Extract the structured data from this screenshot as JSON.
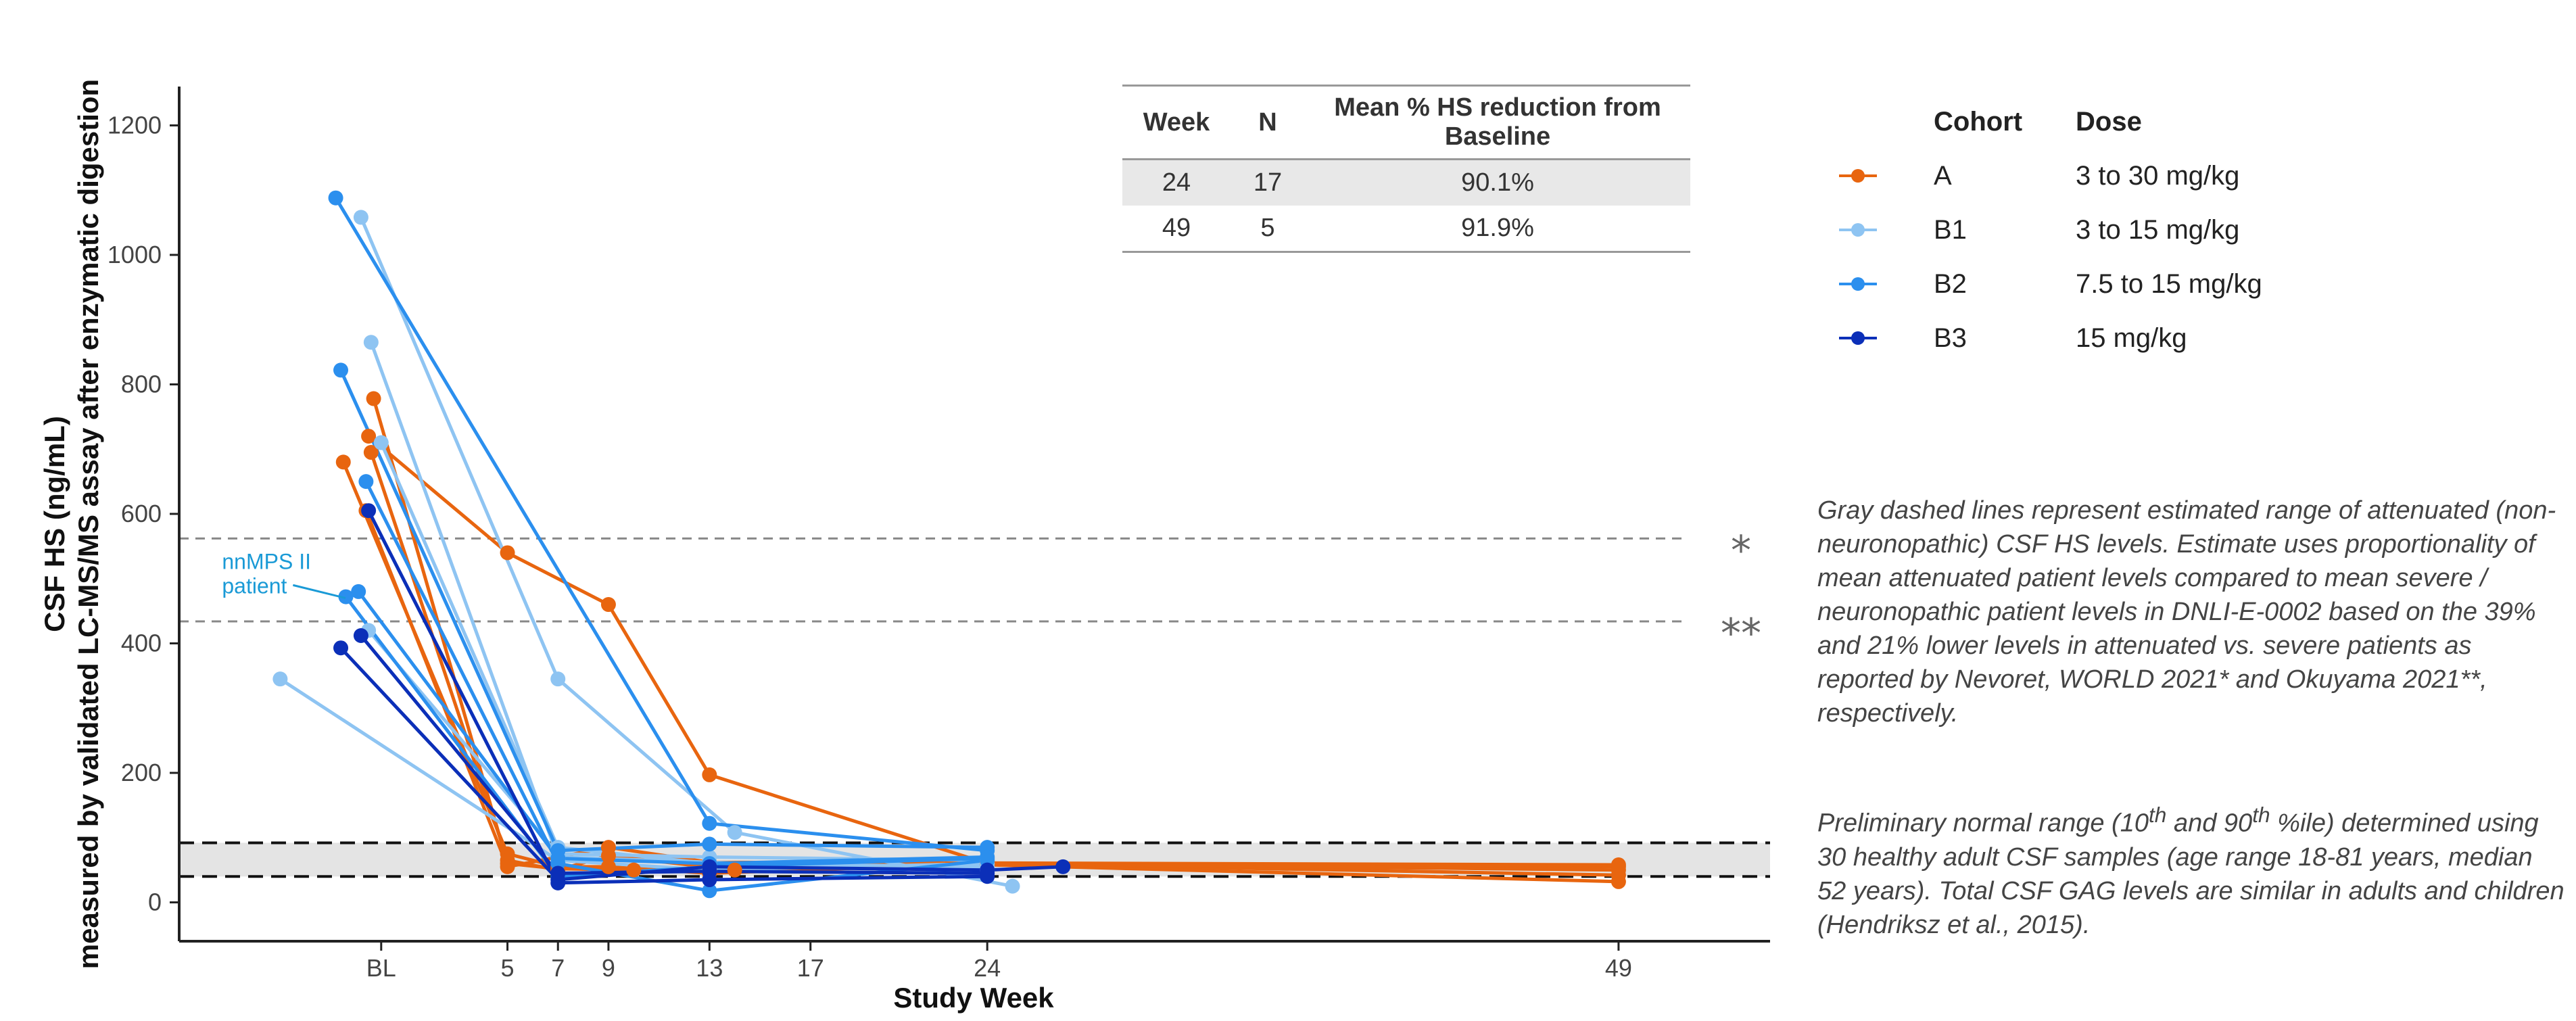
{
  "chart_data": {
    "type": "line",
    "xlabel": "Study Week",
    "ylabel_line1": "CSF HS (ng/mL)",
    "ylabel_line2": "measured by validated LC-MS/MS assay after enzymatic digestion",
    "ylim": [
      -60,
      1260
    ],
    "xlim": [
      -8,
      55
    ],
    "x_ticks": [
      {
        "value": 0,
        "label": "BL"
      },
      {
        "value": 5,
        "label": "5"
      },
      {
        "value": 7,
        "label": "7"
      },
      {
        "value": 9,
        "label": "9"
      },
      {
        "value": 13,
        "label": "13"
      },
      {
        "value": 17,
        "label": "17"
      },
      {
        "value": 24,
        "label": "24"
      },
      {
        "value": 49,
        "label": "49"
      }
    ],
    "y_ticks": [
      0,
      200,
      400,
      600,
      800,
      1000,
      1200
    ],
    "reference_lines": [
      {
        "y": 562,
        "style": "gray-dashed",
        "label": "*"
      },
      {
        "y": 434,
        "style": "gray-dashed",
        "label": "**"
      }
    ],
    "normal_range": {
      "low": 40,
      "high": 92
    },
    "annotation": {
      "text_line1": "nnMPS II",
      "text_line2": "patient",
      "x": -5.5,
      "y": 515,
      "target_x": -1.2,
      "target_y": 470
    },
    "series": [
      {
        "name": "A-1",
        "cohort": "A",
        "points": [
          [
            -1.5,
            680
          ],
          [
            5,
            75
          ],
          [
            7,
            55
          ],
          [
            9,
            55
          ],
          [
            13,
            45
          ],
          [
            24,
            60
          ],
          [
            49,
            55
          ]
        ]
      },
      {
        "name": "A-2",
        "cohort": "A",
        "points": [
          [
            -0.5,
            720
          ],
          [
            5,
            540
          ],
          [
            9,
            460
          ],
          [
            13,
            197
          ],
          [
            24,
            60
          ],
          [
            49,
            42
          ]
        ]
      },
      {
        "name": "A-3",
        "cohort": "A",
        "points": [
          [
            -0.3,
            778
          ],
          [
            5,
            60
          ],
          [
            7,
            52
          ],
          [
            10,
            50
          ],
          [
            13,
            52
          ],
          [
            24,
            58
          ],
          [
            49,
            32
          ]
        ]
      },
      {
        "name": "A-4",
        "cohort": "A",
        "points": [
          [
            -0.4,
            695
          ],
          [
            5,
            65
          ],
          [
            7,
            50
          ],
          [
            9,
            72
          ],
          [
            14,
            50
          ],
          [
            24,
            60
          ],
          [
            49,
            50
          ]
        ]
      },
      {
        "name": "A-5",
        "cohort": "A",
        "points": [
          [
            -0.6,
            605
          ],
          [
            5,
            55
          ],
          [
            9,
            85
          ],
          [
            13,
            62
          ],
          [
            49,
            58
          ]
        ]
      },
      {
        "name": "B1-1",
        "cohort": "B1",
        "points": [
          [
            -4,
            345
          ],
          [
            7,
            65
          ],
          [
            13,
            50
          ],
          [
            24,
            60
          ]
        ]
      },
      {
        "name": "B1-2",
        "cohort": "B1",
        "points": [
          [
            -0.8,
            1058
          ],
          [
            7,
            345
          ],
          [
            14,
            108
          ],
          [
            25,
            25
          ]
        ]
      },
      {
        "name": "B1-3",
        "cohort": "B1",
        "points": [
          [
            -0.4,
            865
          ],
          [
            7,
            70
          ],
          [
            13,
            62
          ],
          [
            24,
            50
          ]
        ]
      },
      {
        "name": "B1-4",
        "cohort": "B1",
        "points": [
          [
            0,
            710
          ],
          [
            7,
            85
          ],
          [
            13,
            60
          ],
          [
            24,
            55
          ]
        ]
      },
      {
        "name": "B1-5",
        "cohort": "B1",
        "points": [
          [
            -0.5,
            420
          ],
          [
            7,
            75
          ],
          [
            13,
            70
          ],
          [
            24,
            65
          ]
        ]
      },
      {
        "name": "B2-1",
        "cohort": "B2",
        "points": [
          [
            -1.8,
            1088
          ],
          [
            13,
            122
          ],
          [
            24,
            80
          ]
        ]
      },
      {
        "name": "B2-2",
        "cohort": "B2",
        "points": [
          [
            -1.6,
            822
          ],
          [
            7,
            80
          ],
          [
            13,
            90
          ],
          [
            24,
            85
          ]
        ]
      },
      {
        "name": "B2-3",
        "cohort": "B2",
        "points": [
          [
            -0.6,
            650
          ],
          [
            7,
            60
          ],
          [
            13,
            18
          ],
          [
            24,
            65
          ]
        ]
      },
      {
        "name": "B2-4",
        "cohort": "B2",
        "points": [
          [
            -1.4,
            472
          ],
          [
            7,
            40
          ],
          [
            13,
            55
          ],
          [
            24,
            68
          ]
        ]
      },
      {
        "name": "B2-5",
        "cohort": "B2",
        "points": [
          [
            -0.9,
            480
          ],
          [
            7,
            68
          ],
          [
            13,
            60
          ],
          [
            24,
            70
          ]
        ]
      },
      {
        "name": "B3-1",
        "cohort": "B3",
        "points": [
          [
            -0.5,
            605
          ],
          [
            7,
            30
          ],
          [
            13,
            35
          ],
          [
            24,
            40
          ]
        ]
      },
      {
        "name": "B3-2",
        "cohort": "B3",
        "points": [
          [
            -1.6,
            393
          ],
          [
            7,
            35
          ],
          [
            13,
            55
          ],
          [
            24,
            50
          ],
          [
            27,
            55
          ]
        ]
      },
      {
        "name": "B3-3",
        "cohort": "B3",
        "points": [
          [
            -0.8,
            412
          ],
          [
            7,
            45
          ],
          [
            13,
            48
          ],
          [
            24,
            45
          ]
        ]
      }
    ],
    "cohort_colors": {
      "A": "#e8650f",
      "B1": "#8ec4f2",
      "B2": "#2b8fee",
      "B3": "#0b2fb8"
    }
  },
  "summary_table": {
    "headers": [
      "Week",
      "N",
      "Mean % HS reduction from Baseline"
    ],
    "rows": [
      [
        "24",
        "17",
        "90.1%"
      ],
      [
        "49",
        "5",
        "91.9%"
      ]
    ]
  },
  "legend": {
    "header_cohort": "Cohort",
    "header_dose": "Dose",
    "items": [
      {
        "cohort": "A",
        "dose": "3 to 30 mg/kg",
        "color": "#e8650f"
      },
      {
        "cohort": "B1",
        "dose": "3 to 15 mg/kg",
        "color": "#8ec4f2"
      },
      {
        "cohort": "B2",
        "dose": "7.5 to 15 mg/kg",
        "color": "#2b8fee"
      },
      {
        "cohort": "B3",
        "dose": "15 mg/kg",
        "color": "#0b2fb8"
      }
    ]
  },
  "notes": {
    "note1": "Gray dashed lines represent estimated range of attenuated (non-neuronopathic) CSF HS levels. Estimate uses proportionality of mean attenuated patient levels compared to mean severe / neuronopathic patient levels in DNLI-E-0002 based on the 39% and 21% lower levels in attenuated vs. severe patients as reported by Nevoret, WORLD 2021* and Okuyama 2021**, respectively.",
    "note2_part1": "Preliminary normal range (10",
    "note2_sup1": "th",
    "note2_part2": " and 90",
    "note2_sup2": "th",
    "note2_part3": " %ile) determined using 30 healthy adult CSF samples (age range 18-81 years, median 52 years). Total CSF GAG levels are similar in adults and children (Hendriksz et al., 2015)."
  }
}
